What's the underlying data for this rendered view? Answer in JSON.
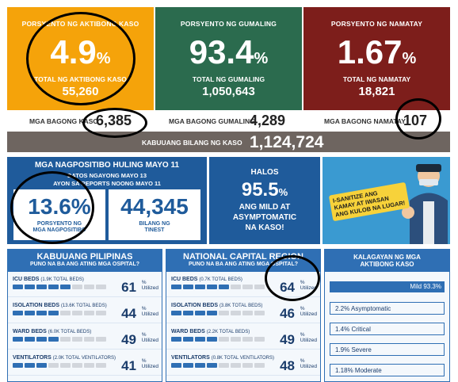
{
  "top_cards": {
    "active": {
      "label": "PORSYENTO NG AKTIBONG KASO",
      "value": "4.9",
      "pct": "%",
      "sub_label": "TOTAL NG AKTIBONG KASO",
      "sub_value": "55,260",
      "color": "#f5a30a"
    },
    "recovered": {
      "label": "PORSYENTO NG GUMALING",
      "value": "93.4",
      "pct": "%",
      "sub_label": "TOTAL NG GUMALING",
      "sub_value": "1,050,643",
      "color": "#2b6b4e"
    },
    "deaths": {
      "label": "PORSYENTO NG NAMATAY",
      "value": "1.67",
      "pct": "%",
      "sub_label": "TOTAL NG NAMATAY",
      "sub_value": "18,821",
      "color": "#7d1e1b"
    }
  },
  "new_strip": {
    "new_cases_label": "MGA BAGONG KASO",
    "new_cases": "6,385",
    "new_recovered_label": "MGA BAGONG GUMALING",
    "new_recovered": "4,289",
    "new_deaths_label": "MGA BAGONG NAMATAY",
    "new_deaths": "107"
  },
  "total_strip": {
    "label": "KABUUANG BILANG NG KASO",
    "value": "1,124,724"
  },
  "positivity": {
    "title": "MGA NAGPOSITIBO HULING MAYO 11",
    "subtitle1": "DATOS NGAYONG MAYO 13",
    "subtitle2": "AYON SA REPORTS NOONG MAYO 11",
    "rate": "13.6%",
    "rate_label": "PORSYENTO NG MGA NAGPOSITIBO",
    "tested": "44,345",
    "tested_label": "BILANG NG TINEST"
  },
  "mild": {
    "line1": "HALOS",
    "value": "95.5",
    "pct": "%",
    "line2": "ANG MILD AT",
    "line3": "ASYMPTOMATIC",
    "line4": "NA KASO!"
  },
  "poster": {
    "line1": "I-SANITIZE ANG",
    "line2": "KAMAY AT IWASAN",
    "line3": "ANG KULOB NA LUGAR!"
  },
  "ph_panel": {
    "title": "KABUUANG PILIPINAS",
    "subtitle": "PUNO NA BA ANG ATING MGA OSPITAL?",
    "rows": [
      {
        "label": "ICU BEDS",
        "detail": "(1.9K TOTAL BEDS)",
        "value": "61",
        "fill": 0.61
      },
      {
        "label": "ISOLATION BEDS",
        "detail": "(13.6K TOTAL BEDS)",
        "value": "44",
        "fill": 0.44
      },
      {
        "label": "WARD BEDS",
        "detail": "(6.0K TOTAL BEDS)",
        "value": "49",
        "fill": 0.49
      },
      {
        "label": "VENTILATORS",
        "detail": "(2.0K TOTAL VENTILATORS)",
        "value": "41",
        "fill": 0.41
      }
    ]
  },
  "ncr_panel": {
    "title": "NATIONAL CAPITAL REGION",
    "subtitle": "PUNO NA BA ANG ATING MGA OSPITAL?",
    "rows": [
      {
        "label": "ICU BEDS",
        "detail": "(0.7K TOTAL BEDS)",
        "value": "64",
        "fill": 0.64
      },
      {
        "label": "ISOLATION BEDS",
        "detail": "(3.8K TOTAL BEDS)",
        "value": "46",
        "fill": 0.46
      },
      {
        "label": "WARD BEDS",
        "detail": "(2.2K TOTAL BEDS)",
        "value": "49",
        "fill": 0.49
      },
      {
        "label": "VENTILATORS",
        "detail": "(0.8K TOTAL VENTILATORS)",
        "value": "48",
        "fill": 0.48
      }
    ]
  },
  "util": {
    "pct": "%",
    "word": "Utilized"
  },
  "kalagayan": {
    "title1": "KALAGAYAN NG MGA",
    "title2": "AKTIBONG KASO",
    "mild": "Mild 93.3%",
    "items": [
      "2.2% Asymptomatic",
      "1.4% Critical",
      "1.9% Severe",
      "1.18% Moderate"
    ]
  }
}
